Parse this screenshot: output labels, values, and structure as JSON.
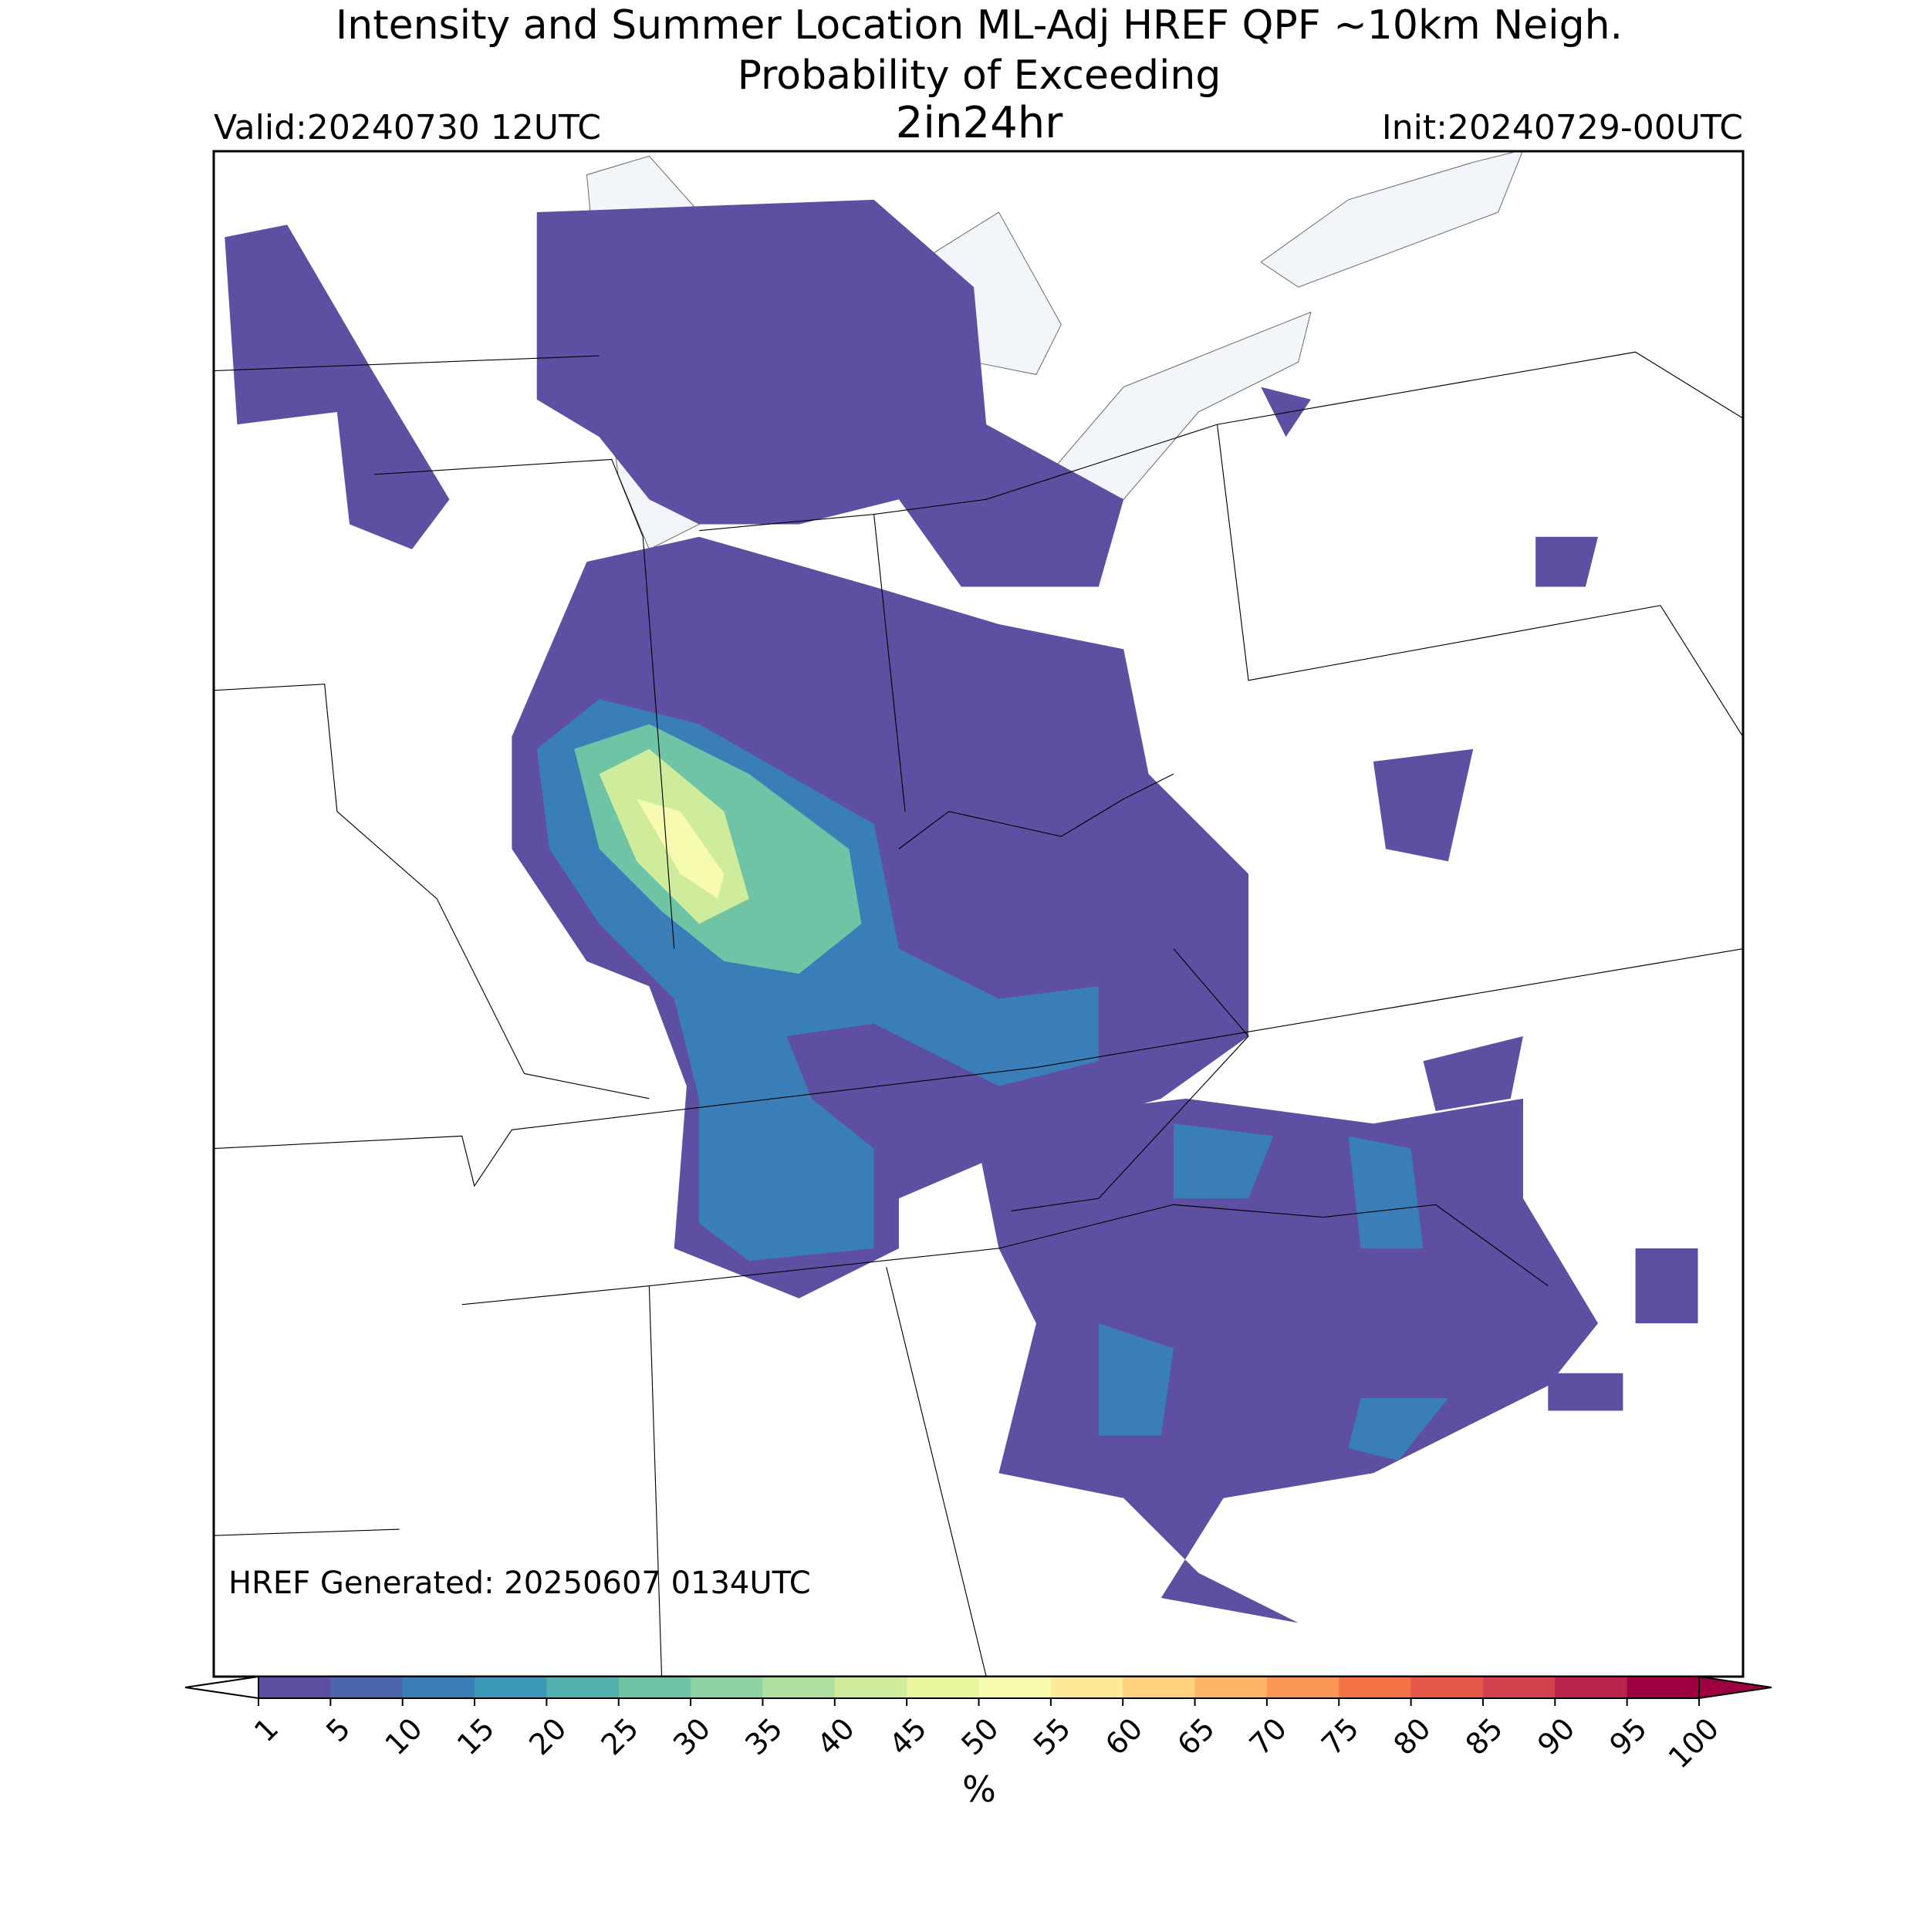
{
  "header": {
    "title": "Intensity and Summer Location ML-Adj HREF QPF ~10km Neigh.",
    "subtitle": "Probability of Exceeding",
    "threshold": "2in24hr",
    "valid": "Valid:20240730 12UTC",
    "init": "Init:20240729-00UTC"
  },
  "footer": {
    "generated": "HREF Generated: 20250607 0134UTC"
  },
  "colorbar": {
    "label": "%",
    "ticks": [
      1,
      5,
      10,
      15,
      20,
      25,
      30,
      35,
      40,
      45,
      50,
      55,
      60,
      65,
      70,
      75,
      80,
      85,
      90,
      95,
      100
    ],
    "colors": [
      "#5e4fa2",
      "#4d65ad",
      "#3a7eb8",
      "#3c98b7",
      "#52b0ae",
      "#6ec4a5",
      "#8fd2a4",
      "#b0dfa2",
      "#cfeb9c",
      "#e9f69d",
      "#f7fbaf",
      "#fee999",
      "#fed27f",
      "#fdb667",
      "#fa9656",
      "#f47346",
      "#e55749",
      "#d3424e",
      "#b9234c",
      "#9e0142"
    ],
    "under_color": "#ffffff",
    "over_color": "#9e0142"
  }
}
